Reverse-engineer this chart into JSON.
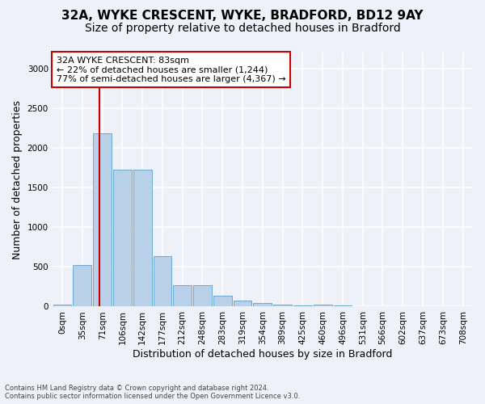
{
  "title_line1": "32A, WYKE CRESCENT, WYKE, BRADFORD, BD12 9AY",
  "title_line2": "Size of property relative to detached houses in Bradford",
  "xlabel": "Distribution of detached houses by size in Bradford",
  "ylabel": "Number of detached properties",
  "bar_color": "#b8d0e8",
  "bar_edge_color": "#6aaad4",
  "background_color": "#eef2f8",
  "grid_color": "#ffffff",
  "categories": [
    "0sqm",
    "35sqm",
    "71sqm",
    "106sqm",
    "142sqm",
    "177sqm",
    "212sqm",
    "248sqm",
    "283sqm",
    "319sqm",
    "354sqm",
    "389sqm",
    "425sqm",
    "460sqm",
    "496sqm",
    "531sqm",
    "566sqm",
    "602sqm",
    "637sqm",
    "673sqm",
    "708sqm"
  ],
  "values": [
    25,
    520,
    2185,
    1720,
    1720,
    640,
    270,
    270,
    140,
    80,
    45,
    30,
    15,
    30,
    10,
    5,
    2,
    1,
    1,
    1,
    1
  ],
  "ylim": [
    0,
    3200
  ],
  "yticks": [
    0,
    500,
    1000,
    1500,
    2000,
    2500,
    3000
  ],
  "property_label": "32A WYKE CRESCENT: 83sqm",
  "annotation_line1": "← 22% of detached houses are smaller (1,244)",
  "annotation_line2": "77% of semi-detached houses are larger (4,367) →",
  "vline_color": "#cc0000",
  "vline_x_idx": 2,
  "vline_x_offset": 0.35,
  "annotation_box_color": "#ffffff",
  "annotation_box_edge": "#cc0000",
  "footer_line1": "Contains HM Land Registry data © Crown copyright and database right 2024.",
  "footer_line2": "Contains public sector information licensed under the Open Government Licence v3.0.",
  "title_fontsize": 11,
  "subtitle_fontsize": 10,
  "axis_label_fontsize": 9,
  "tick_fontsize": 7.5,
  "annotation_fontsize": 8
}
